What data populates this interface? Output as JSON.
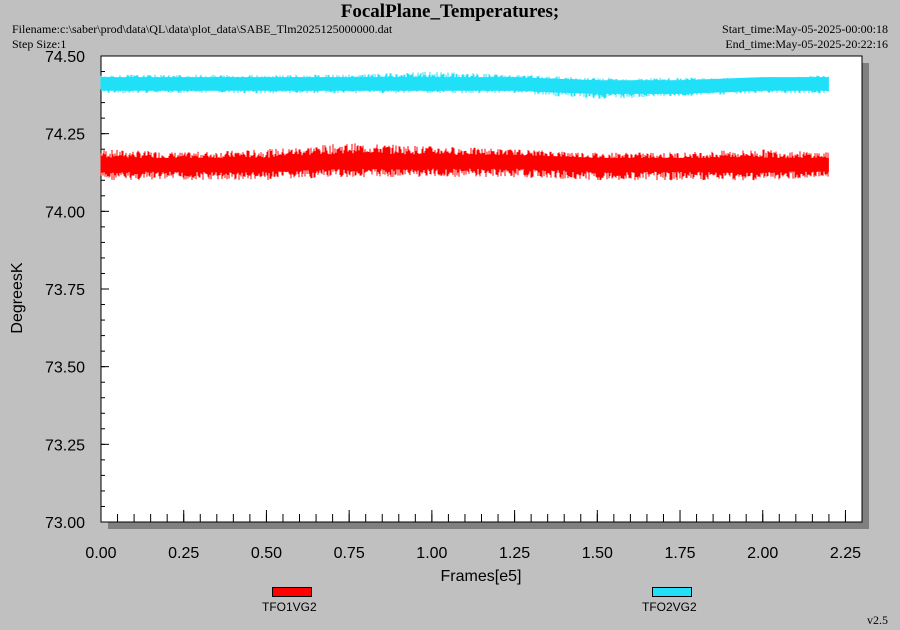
{
  "header": {
    "title": "FocalPlane_Temperatures;",
    "filename": "Filename:c:\\saber\\prod\\data\\QL\\data\\plot_data\\SABE_Tlm2025125000000.dat",
    "step_size": "Step Size:1",
    "start_time": "Start_time:May-05-2025-00:00:18",
    "end_time": "End_time:May-05-2025-20:22:16"
  },
  "footer": {
    "version": "v2.5"
  },
  "chart_data": {
    "type": "line",
    "title": "FocalPlane_Temperatures;",
    "xlabel": "Frames[e5]",
    "ylabel": "DegreesK",
    "xlim": [
      0.0,
      2.3
    ],
    "ylim": [
      73.0,
      74.5
    ],
    "x_ticks": [
      "0.00",
      "0.25",
      "0.50",
      "0.75",
      "1.00",
      "1.25",
      "1.50",
      "1.75",
      "2.00",
      "2.25"
    ],
    "y_ticks": [
      "73.00",
      "73.25",
      "73.50",
      "73.75",
      "74.00",
      "74.25",
      "74.50"
    ],
    "grid": false,
    "legend_position": "bottom",
    "series": [
      {
        "name": "TFO1VG2",
        "color": "#ff0000",
        "x": [
          0.0,
          0.25,
          0.5,
          0.75,
          1.0,
          1.25,
          1.5,
          1.75,
          2.0,
          2.2
        ],
        "y_center": [
          74.15,
          74.15,
          74.15,
          74.16,
          74.16,
          74.16,
          74.15,
          74.15,
          74.15,
          74.15
        ],
        "y_min": [
          74.1,
          74.1,
          74.1,
          74.11,
          74.11,
          74.11,
          74.1,
          74.1,
          74.1,
          74.11
        ],
        "y_max": [
          74.2,
          74.19,
          74.2,
          74.22,
          74.21,
          74.2,
          74.19,
          74.19,
          74.2,
          74.19
        ]
      },
      {
        "name": "TFO2VG2",
        "color": "#20e0f8",
        "x": [
          0.0,
          0.25,
          0.5,
          0.75,
          1.0,
          1.25,
          1.5,
          1.75,
          2.0,
          2.2
        ],
        "y_center": [
          74.41,
          74.41,
          74.41,
          74.41,
          74.41,
          74.41,
          74.4,
          74.4,
          74.41,
          74.41
        ],
        "y_min": [
          74.38,
          74.38,
          74.38,
          74.38,
          74.38,
          74.38,
          74.36,
          74.37,
          74.38,
          74.38
        ],
        "y_max": [
          74.44,
          74.44,
          74.44,
          74.44,
          74.45,
          74.44,
          74.43,
          74.43,
          74.43,
          74.44
        ]
      }
    ]
  }
}
